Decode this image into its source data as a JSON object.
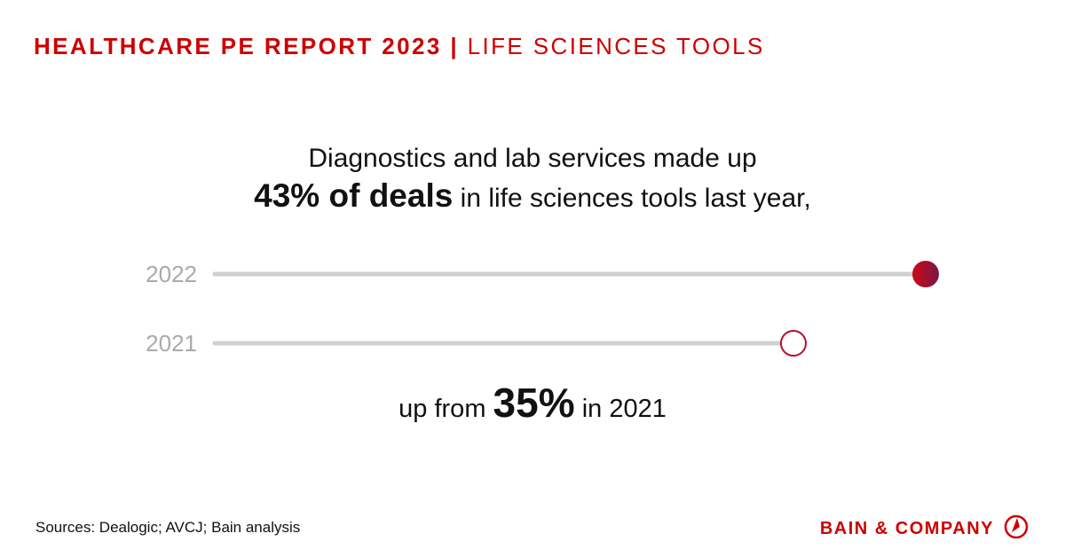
{
  "header": {
    "title": "HEALTHCARE PE REPORT 2023",
    "separator": "|",
    "subtitle": "LIFE SCIENCES TOOLS"
  },
  "headline": {
    "line1": "Diagnostics and lab services made up",
    "emphasis": "43% of deals",
    "line2_rest": "in life sciences tools last year,"
  },
  "chart_data": {
    "type": "dot",
    "categories": [
      "2022",
      "2021"
    ],
    "values": [
      43,
      35
    ],
    "color": "#b0102c",
    "track_color": "#d0d0d0"
  },
  "caption": {
    "before": "up from",
    "emphasis": "35%",
    "after": "in 2021"
  },
  "footer": {
    "sources": "Sources: Dealogic; AVCJ; Bain analysis",
    "brand": "BAIN & COMPANY"
  }
}
